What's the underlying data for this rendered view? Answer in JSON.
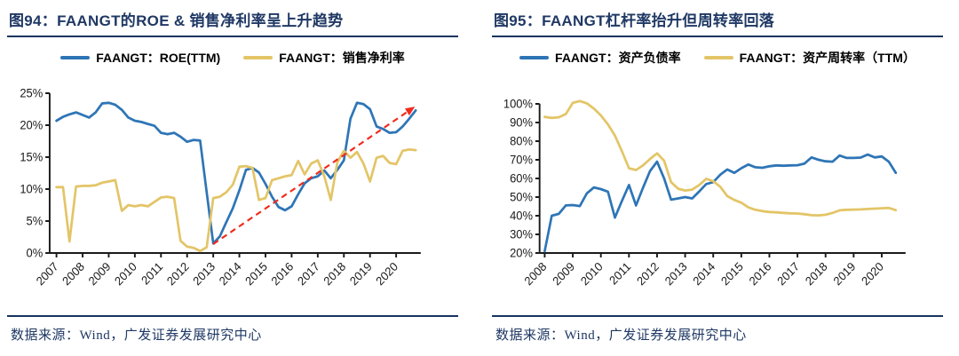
{
  "colors": {
    "navy": "#1F3864",
    "blue": "#2E75B6",
    "gold": "#E3C567",
    "red": "#F02B1D",
    "axis": "#1a1a1a"
  },
  "panels": [
    {
      "title": "图94：FAANGT的ROE & 销售净利率呈上升趋势",
      "source": "数据来源：Wind，广发证券发展研究中心"
    },
    {
      "title": "图95：FAANGT杠杆率抬升但周转率回落",
      "source": "数据来源：Wind，广发证券发展研究中心"
    }
  ],
  "chart_data": [
    {
      "type": "line",
      "title": "图94：FAANGT的ROE & 销售净利率呈上升趋势",
      "xlabel": "",
      "ylabel": "",
      "ylim": [
        0,
        25
      ],
      "grid": false,
      "legend_position": "top-center",
      "y_ticks": [
        {
          "v": 0,
          "label": "0%"
        },
        {
          "v": 5,
          "label": "5%"
        },
        {
          "v": 10,
          "label": "10%"
        },
        {
          "v": 15,
          "label": "15%"
        },
        {
          "v": 20,
          "label": "20%"
        },
        {
          "v": 25,
          "label": "25%"
        }
      ],
      "x_ticks": [
        {
          "v": 2007,
          "label": "2007"
        },
        {
          "v": 2008,
          "label": "2008"
        },
        {
          "v": 2009,
          "label": "2009"
        },
        {
          "v": 2010,
          "label": "2010"
        },
        {
          "v": 2011,
          "label": "2011"
        },
        {
          "v": 2012,
          "label": "2012"
        },
        {
          "v": 2013,
          "label": "2013"
        },
        {
          "v": 2014,
          "label": "2014"
        },
        {
          "v": 2015,
          "label": "2015"
        },
        {
          "v": 2016,
          "label": "2016"
        },
        {
          "v": 2017,
          "label": "2017"
        },
        {
          "v": 2018,
          "label": "2018"
        },
        {
          "v": 2019,
          "label": "2019"
        },
        {
          "v": 2020,
          "label": "2020"
        }
      ],
      "x_start": 2007,
      "x_step": 0.25,
      "series": [
        {
          "name": "FAANGT：ROE(TTM)",
          "color_key": "blue",
          "values": [
            20.7,
            21.3,
            21.7,
            22.0,
            21.6,
            21.2,
            22.0,
            23.4,
            23.5,
            23.2,
            22.4,
            21.2,
            20.7,
            20.5,
            20.2,
            19.9,
            18.8,
            18.6,
            18.8,
            18.2,
            17.4,
            17.7,
            17.6,
            9.5,
            1.5,
            2.6,
            4.8,
            7.0,
            9.8,
            13.0,
            13.3,
            12.6,
            10.8,
            8.8,
            7.2,
            6.7,
            7.3,
            9.2,
            10.9,
            11.7,
            12.0,
            12.9,
            11.7,
            13.0,
            14.5,
            21.0,
            23.5,
            23.3,
            22.5,
            19.8,
            19.4,
            18.8,
            18.9,
            19.8,
            21.0,
            22.3
          ]
        },
        {
          "name": "FAANGT：销售净利率",
          "color_key": "gold",
          "values": [
            10.3,
            10.3,
            1.8,
            10.4,
            10.5,
            10.5,
            10.6,
            11.0,
            11.2,
            11.4,
            6.6,
            7.5,
            7.3,
            7.5,
            7.3,
            8.0,
            8.7,
            8.8,
            8.6,
            1.9,
            1.0,
            0.8,
            0.3,
            0.9,
            8.6,
            8.8,
            9.5,
            10.7,
            13.5,
            13.6,
            13.3,
            8.3,
            8.6,
            11.4,
            11.7,
            12.0,
            12.2,
            14.4,
            12.3,
            14.0,
            14.5,
            12.0,
            8.3,
            14.2,
            16.0,
            14.9,
            15.8,
            14.0,
            11.2,
            14.9,
            15.2,
            14.1,
            13.9,
            16.0,
            16.2,
            16.1
          ]
        }
      ],
      "trend_arrow": {
        "from": [
          2013.0,
          1.4
        ],
        "to": [
          2020.72,
          22.9
        ],
        "color_key": "red",
        "style": "dashed"
      }
    },
    {
      "type": "line",
      "title": "图95：FAANGT杠杆率抬升但周转率回落",
      "xlabel": "",
      "ylabel": "",
      "ylim": [
        20,
        100
      ],
      "grid": false,
      "legend_position": "top-center",
      "y_ticks": [
        {
          "v": 20,
          "label": "20%"
        },
        {
          "v": 30,
          "label": "30%"
        },
        {
          "v": 40,
          "label": "40%"
        },
        {
          "v": 50,
          "label": "50%"
        },
        {
          "v": 60,
          "label": "60%"
        },
        {
          "v": 70,
          "label": "70%"
        },
        {
          "v": 80,
          "label": "80%"
        },
        {
          "v": 90,
          "label": "90%"
        },
        {
          "v": 100,
          "label": "100%"
        }
      ],
      "x_ticks": [
        {
          "v": 2008,
          "label": "2008"
        },
        {
          "v": 2009,
          "label": "2009"
        },
        {
          "v": 2010,
          "label": "2010"
        },
        {
          "v": 2011,
          "label": "2011"
        },
        {
          "v": 2012,
          "label": "2012"
        },
        {
          "v": 2013,
          "label": "2013"
        },
        {
          "v": 2014,
          "label": "2014"
        },
        {
          "v": 2015,
          "label": "2015"
        },
        {
          "v": 2016,
          "label": "2016"
        },
        {
          "v": 2017,
          "label": "2017"
        },
        {
          "v": 2018,
          "label": "2018"
        },
        {
          "v": 2019,
          "label": "2019"
        },
        {
          "v": 2020,
          "label": "2020"
        }
      ],
      "x_start": 2008,
      "x_step": 0.25,
      "series": [
        {
          "name": "FAANGT：资产负债率",
          "color_key": "blue",
          "values": [
            21,
            40,
            41,
            45.5,
            45.7,
            45.2,
            52,
            55.2,
            54.3,
            52.9,
            39,
            48,
            56.5,
            45.5,
            55,
            64,
            69,
            60,
            48.6,
            49.3,
            50,
            49.3,
            53,
            57,
            58,
            62,
            64.8,
            63,
            65.5,
            67.5,
            66,
            65.7,
            66.5,
            67,
            66.8,
            67,
            67.1,
            68,
            71.3,
            70,
            69.2,
            69,
            72.3,
            71,
            71,
            71.2,
            72.8,
            71.3,
            71.8,
            69,
            63
          ]
        },
        {
          "name": "FAANGT：资产周转率（TTM）",
          "color_key": "gold",
          "values": [
            93,
            92.5,
            92.8,
            94.5,
            100.5,
            101.5,
            100.3,
            97.5,
            93.8,
            89,
            83,
            74.5,
            65.5,
            64.5,
            67,
            70.5,
            73.5,
            69.5,
            58,
            54.5,
            53.5,
            54,
            56.5,
            59.8,
            58.5,
            55.5,
            50.5,
            48.5,
            47,
            44.5,
            43.2,
            42.5,
            42,
            41.8,
            41.5,
            41.3,
            41.2,
            40.8,
            40.3,
            40.2,
            40.5,
            41.5,
            42.9,
            43.2,
            43.3,
            43.4,
            43.6,
            43.8,
            44,
            44.2,
            43
          ]
        }
      ]
    }
  ]
}
